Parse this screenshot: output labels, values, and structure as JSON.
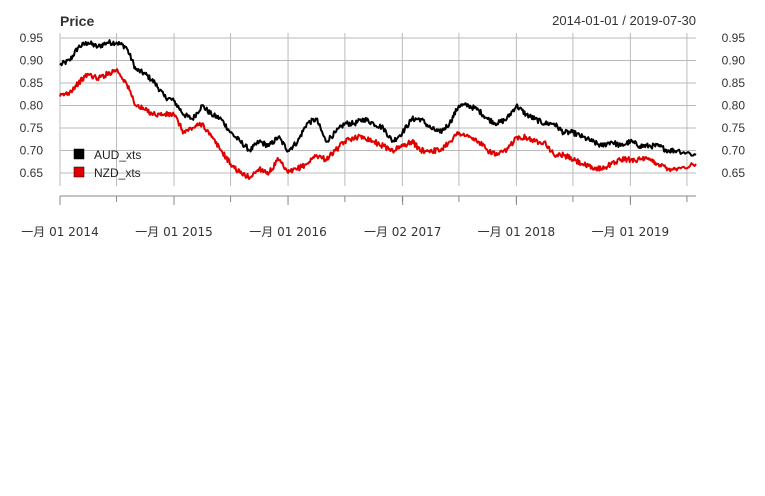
{
  "chart_data": {
    "type": "line",
    "title": "Price",
    "date_range": "2014-01-01 / 2019-07-30",
    "ylim": [
      0.62,
      0.96
    ],
    "y_ticks": [
      0.65,
      0.7,
      0.75,
      0.8,
      0.85,
      0.9,
      0.95
    ],
    "y_tick_labels": [
      "0.65",
      "0.70",
      "0.75",
      "0.80",
      "0.85",
      "0.90",
      "0.95"
    ],
    "x_range": [
      "2014-01-01",
      "2019-07-30"
    ],
    "x_ticks": [
      {
        "date": "2014-01-01",
        "label": "一月 01 2014"
      },
      {
        "date": "2015-01-01",
        "label": "一月 01 2015"
      },
      {
        "date": "2016-01-01",
        "label": "一月 01 2016"
      },
      {
        "date": "2017-01-02",
        "label": "一月 02 2017"
      },
      {
        "date": "2018-01-01",
        "label": "一月 01 2018"
      },
      {
        "date": "2019-01-01",
        "label": "一月 01 2019"
      }
    ],
    "grid": true,
    "legend_position": "left",
    "series": [
      {
        "name": "AUD_xts",
        "color": "#000000",
        "x": [
          "2014-01-01",
          "2014-02-01",
          "2014-03-01",
          "2014-04-01",
          "2014-05-01",
          "2014-06-01",
          "2014-07-01",
          "2014-08-01",
          "2014-09-01",
          "2014-10-01",
          "2014-11-01",
          "2014-12-01",
          "2015-01-01",
          "2015-02-01",
          "2015-03-01",
          "2015-04-01",
          "2015-05-01",
          "2015-06-01",
          "2015-07-01",
          "2015-08-01",
          "2015-09-01",
          "2015-10-01",
          "2015-11-01",
          "2015-12-01",
          "2016-01-01",
          "2016-02-01",
          "2016-03-01",
          "2016-04-01",
          "2016-05-01",
          "2016-06-01",
          "2016-07-01",
          "2016-08-01",
          "2016-09-01",
          "2016-10-01",
          "2016-11-01",
          "2016-12-01",
          "2017-01-01",
          "2017-02-01",
          "2017-03-01",
          "2017-04-01",
          "2017-05-01",
          "2017-06-01",
          "2017-07-01",
          "2017-08-01",
          "2017-09-01",
          "2017-10-01",
          "2017-11-01",
          "2017-12-01",
          "2018-01-01",
          "2018-02-01",
          "2018-03-01",
          "2018-04-01",
          "2018-05-01",
          "2018-06-01",
          "2018-07-01",
          "2018-08-01",
          "2018-09-01",
          "2018-10-01",
          "2018-11-01",
          "2018-12-01",
          "2019-01-01",
          "2019-02-01",
          "2019-03-01",
          "2019-04-01",
          "2019-05-01",
          "2019-06-01",
          "2019-07-30"
        ],
        "values": [
          0.89,
          0.9,
          0.93,
          0.94,
          0.93,
          0.94,
          0.94,
          0.93,
          0.88,
          0.87,
          0.85,
          0.82,
          0.81,
          0.78,
          0.77,
          0.8,
          0.78,
          0.77,
          0.74,
          0.72,
          0.7,
          0.72,
          0.71,
          0.73,
          0.7,
          0.72,
          0.76,
          0.77,
          0.72,
          0.74,
          0.76,
          0.76,
          0.77,
          0.76,
          0.75,
          0.72,
          0.74,
          0.77,
          0.77,
          0.75,
          0.74,
          0.76,
          0.8,
          0.8,
          0.79,
          0.77,
          0.76,
          0.77,
          0.8,
          0.78,
          0.77,
          0.76,
          0.76,
          0.74,
          0.74,
          0.73,
          0.72,
          0.71,
          0.72,
          0.71,
          0.72,
          0.71,
          0.71,
          0.71,
          0.7,
          0.7,
          0.69
        ]
      },
      {
        "name": "NZD_xts",
        "color": "#e00000",
        "x": [
          "2014-01-01",
          "2014-02-01",
          "2014-03-01",
          "2014-04-01",
          "2014-05-01",
          "2014-06-01",
          "2014-07-01",
          "2014-08-01",
          "2014-09-01",
          "2014-10-01",
          "2014-11-01",
          "2014-12-01",
          "2015-01-01",
          "2015-02-01",
          "2015-03-01",
          "2015-04-01",
          "2015-05-01",
          "2015-06-01",
          "2015-07-01",
          "2015-08-01",
          "2015-09-01",
          "2015-10-01",
          "2015-11-01",
          "2015-12-01",
          "2016-01-01",
          "2016-02-01",
          "2016-03-01",
          "2016-04-01",
          "2016-05-01",
          "2016-06-01",
          "2016-07-01",
          "2016-08-01",
          "2016-09-01",
          "2016-10-01",
          "2016-11-01",
          "2016-12-01",
          "2017-01-01",
          "2017-02-01",
          "2017-03-01",
          "2017-04-01",
          "2017-05-01",
          "2017-06-01",
          "2017-07-01",
          "2017-08-01",
          "2017-09-01",
          "2017-10-01",
          "2017-11-01",
          "2017-12-01",
          "2018-01-01",
          "2018-02-01",
          "2018-03-01",
          "2018-04-01",
          "2018-05-01",
          "2018-06-01",
          "2018-07-01",
          "2018-08-01",
          "2018-09-01",
          "2018-10-01",
          "2018-11-01",
          "2018-12-01",
          "2019-01-01",
          "2019-02-01",
          "2019-03-01",
          "2019-04-01",
          "2019-05-01",
          "2019-06-01",
          "2019-07-30"
        ],
        "values": [
          0.82,
          0.83,
          0.85,
          0.87,
          0.86,
          0.87,
          0.88,
          0.85,
          0.8,
          0.79,
          0.78,
          0.78,
          0.78,
          0.74,
          0.75,
          0.76,
          0.73,
          0.7,
          0.67,
          0.65,
          0.64,
          0.66,
          0.65,
          0.68,
          0.65,
          0.66,
          0.67,
          0.69,
          0.68,
          0.7,
          0.72,
          0.73,
          0.73,
          0.72,
          0.71,
          0.7,
          0.71,
          0.72,
          0.7,
          0.7,
          0.7,
          0.72,
          0.74,
          0.73,
          0.72,
          0.7,
          0.69,
          0.7,
          0.73,
          0.73,
          0.72,
          0.72,
          0.69,
          0.69,
          0.68,
          0.67,
          0.66,
          0.66,
          0.67,
          0.68,
          0.68,
          0.68,
          0.68,
          0.67,
          0.66,
          0.66,
          0.67
        ]
      }
    ]
  }
}
